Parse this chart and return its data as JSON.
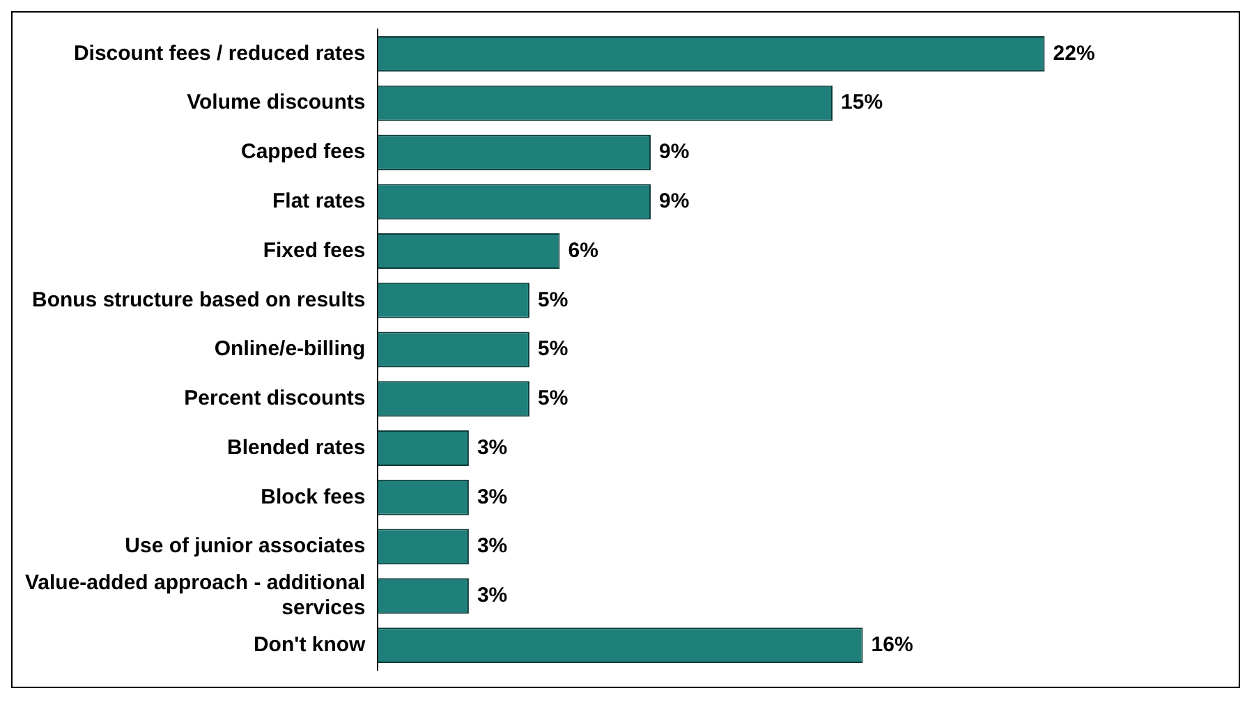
{
  "chart_data": {
    "type": "bar",
    "orientation": "horizontal",
    "categories": [
      "Discount fees / reduced rates",
      "Volume discounts",
      "Capped fees",
      "Flat rates",
      "Fixed fees",
      "Bonus structure based on results",
      "Online/e-billing",
      "Percent discounts",
      "Blended rates",
      "Block fees",
      "Use of junior associates",
      "Value-added approach - additional services",
      "Don't know"
    ],
    "values": [
      22,
      15,
      9,
      9,
      6,
      5,
      5,
      5,
      3,
      3,
      3,
      3,
      16
    ],
    "value_labels": [
      "22%",
      "15%",
      "9%",
      "9%",
      "6%",
      "5%",
      "5%",
      "5%",
      "3%",
      "3%",
      "3%",
      "3%",
      "16%"
    ],
    "color": "#1f7f7a"
  }
}
